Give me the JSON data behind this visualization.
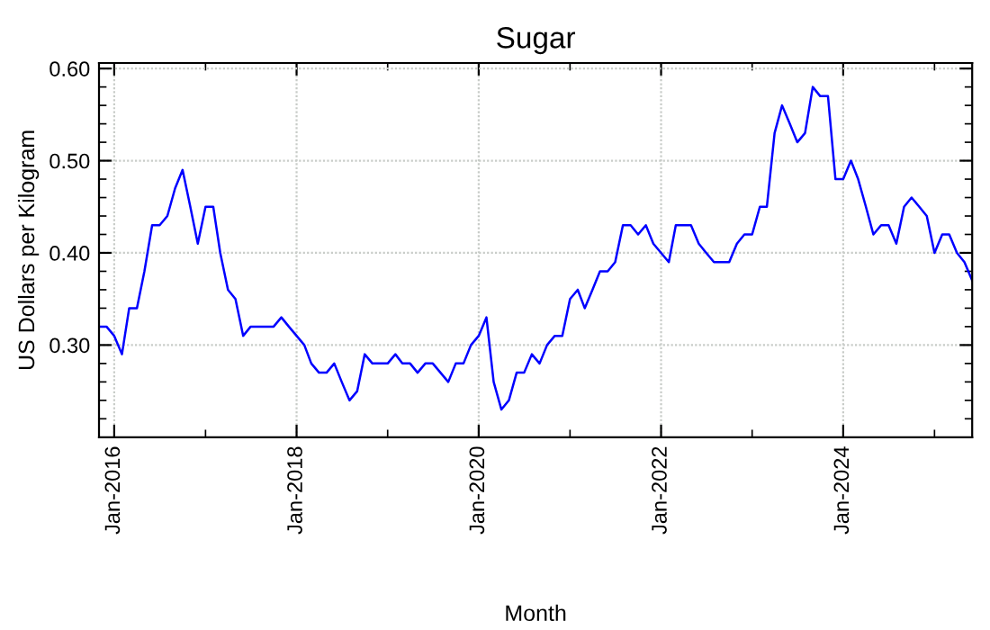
{
  "chart_data": {
    "type": "line",
    "title": "Sugar",
    "xlabel": "Month",
    "ylabel": "US Dollars per Kilogram",
    "x": [
      "2015-11",
      "2015-12",
      "2016-01",
      "2016-02",
      "2016-03",
      "2016-04",
      "2016-05",
      "2016-06",
      "2016-07",
      "2016-08",
      "2016-09",
      "2016-10",
      "2016-11",
      "2016-12",
      "2017-01",
      "2017-02",
      "2017-03",
      "2017-04",
      "2017-05",
      "2017-06",
      "2017-07",
      "2017-08",
      "2017-09",
      "2017-10",
      "2017-11",
      "2017-12",
      "2018-01",
      "2018-02",
      "2018-03",
      "2018-04",
      "2018-05",
      "2018-06",
      "2018-07",
      "2018-08",
      "2018-09",
      "2018-10",
      "2018-11",
      "2018-12",
      "2019-01",
      "2019-02",
      "2019-03",
      "2019-04",
      "2019-05",
      "2019-06",
      "2019-07",
      "2019-08",
      "2019-09",
      "2019-10",
      "2019-11",
      "2019-12",
      "2020-01",
      "2020-02",
      "2020-03",
      "2020-04",
      "2020-05",
      "2020-06",
      "2020-07",
      "2020-08",
      "2020-09",
      "2020-10",
      "2020-11",
      "2020-12",
      "2021-01",
      "2021-02",
      "2021-03",
      "2021-04",
      "2021-05",
      "2021-06",
      "2021-07",
      "2021-08",
      "2021-09",
      "2021-10",
      "2021-11",
      "2021-12",
      "2022-01",
      "2022-02",
      "2022-03",
      "2022-04",
      "2022-05",
      "2022-06",
      "2022-07",
      "2022-08",
      "2022-09",
      "2022-10",
      "2022-11",
      "2022-12",
      "2023-01",
      "2023-02",
      "2023-03",
      "2023-04",
      "2023-05",
      "2023-06",
      "2023-07",
      "2023-08",
      "2023-09",
      "2023-10",
      "2023-11",
      "2023-12",
      "2024-01",
      "2024-02",
      "2024-03",
      "2024-04",
      "2024-05",
      "2024-06",
      "2024-07",
      "2024-08",
      "2024-09",
      "2024-10",
      "2024-11",
      "2024-12",
      "2025-01",
      "2025-02",
      "2025-03",
      "2025-04",
      "2025-05",
      "2025-06"
    ],
    "series": [
      {
        "color": "#0000ff",
        "values": [
          0.32,
          0.32,
          0.31,
          0.29,
          0.34,
          0.34,
          0.38,
          0.43,
          0.43,
          0.44,
          0.47,
          0.49,
          0.45,
          0.41,
          0.45,
          0.45,
          0.4,
          0.36,
          0.35,
          0.31,
          0.32,
          0.32,
          0.32,
          0.32,
          0.33,
          0.32,
          0.31,
          0.3,
          0.28,
          0.27,
          0.27,
          0.28,
          0.26,
          0.24,
          0.25,
          0.29,
          0.28,
          0.28,
          0.28,
          0.29,
          0.28,
          0.28,
          0.27,
          0.28,
          0.28,
          0.27,
          0.26,
          0.28,
          0.28,
          0.3,
          0.31,
          0.33,
          0.26,
          0.23,
          0.24,
          0.27,
          0.27,
          0.29,
          0.28,
          0.3,
          0.31,
          0.31,
          0.35,
          0.36,
          0.34,
          0.36,
          0.38,
          0.38,
          0.39,
          0.43,
          0.43,
          0.42,
          0.43,
          0.41,
          0.4,
          0.39,
          0.43,
          0.43,
          0.43,
          0.41,
          0.4,
          0.39,
          0.39,
          0.39,
          0.41,
          0.42,
          0.42,
          0.45,
          0.45,
          0.53,
          0.56,
          0.54,
          0.52,
          0.53,
          0.58,
          0.57,
          0.57,
          0.48,
          0.48,
          0.5,
          0.48,
          0.45,
          0.42,
          0.43,
          0.43,
          0.41,
          0.45,
          0.46,
          0.45,
          0.44,
          0.4,
          0.42,
          0.42,
          0.4,
          0.39,
          0.37
        ]
      }
    ],
    "xlim": [
      "2015-11",
      "2025-06"
    ],
    "xticks": [
      {
        "value": "2016-01",
        "label": "Jan-2016"
      },
      {
        "value": "2017-01",
        "label": null
      },
      {
        "value": "2018-01",
        "label": "Jan-2018"
      },
      {
        "value": "2019-01",
        "label": null
      },
      {
        "value": "2020-01",
        "label": "Jan-2020"
      },
      {
        "value": "2021-01",
        "label": null
      },
      {
        "value": "2022-01",
        "label": "Jan-2022"
      },
      {
        "value": "2023-01",
        "label": null
      },
      {
        "value": "2024-01",
        "label": "Jan-2024"
      },
      {
        "value": "2025-01",
        "label": null
      }
    ],
    "ylim": [
      0.2,
      0.606
    ],
    "yticks": [
      {
        "value": 0.22,
        "label": null
      },
      {
        "value": 0.24,
        "label": null
      },
      {
        "value": 0.26,
        "label": null
      },
      {
        "value": 0.28,
        "label": null
      },
      {
        "value": 0.3,
        "label": "0.30"
      },
      {
        "value": 0.32,
        "label": null
      },
      {
        "value": 0.34,
        "label": null
      },
      {
        "value": 0.36,
        "label": null
      },
      {
        "value": 0.38,
        "label": null
      },
      {
        "value": 0.4,
        "label": "0.40"
      },
      {
        "value": 0.42,
        "label": null
      },
      {
        "value": 0.44,
        "label": null
      },
      {
        "value": 0.46,
        "label": null
      },
      {
        "value": 0.48,
        "label": null
      },
      {
        "value": 0.5,
        "label": "0.50"
      },
      {
        "value": 0.52,
        "label": null
      },
      {
        "value": 0.54,
        "label": null
      },
      {
        "value": 0.56,
        "label": null
      },
      {
        "value": 0.58,
        "label": null
      },
      {
        "value": 0.6,
        "label": "0.60"
      }
    ],
    "grid": true,
    "line_style": "solid",
    "marker": "none",
    "legend": false
  }
}
